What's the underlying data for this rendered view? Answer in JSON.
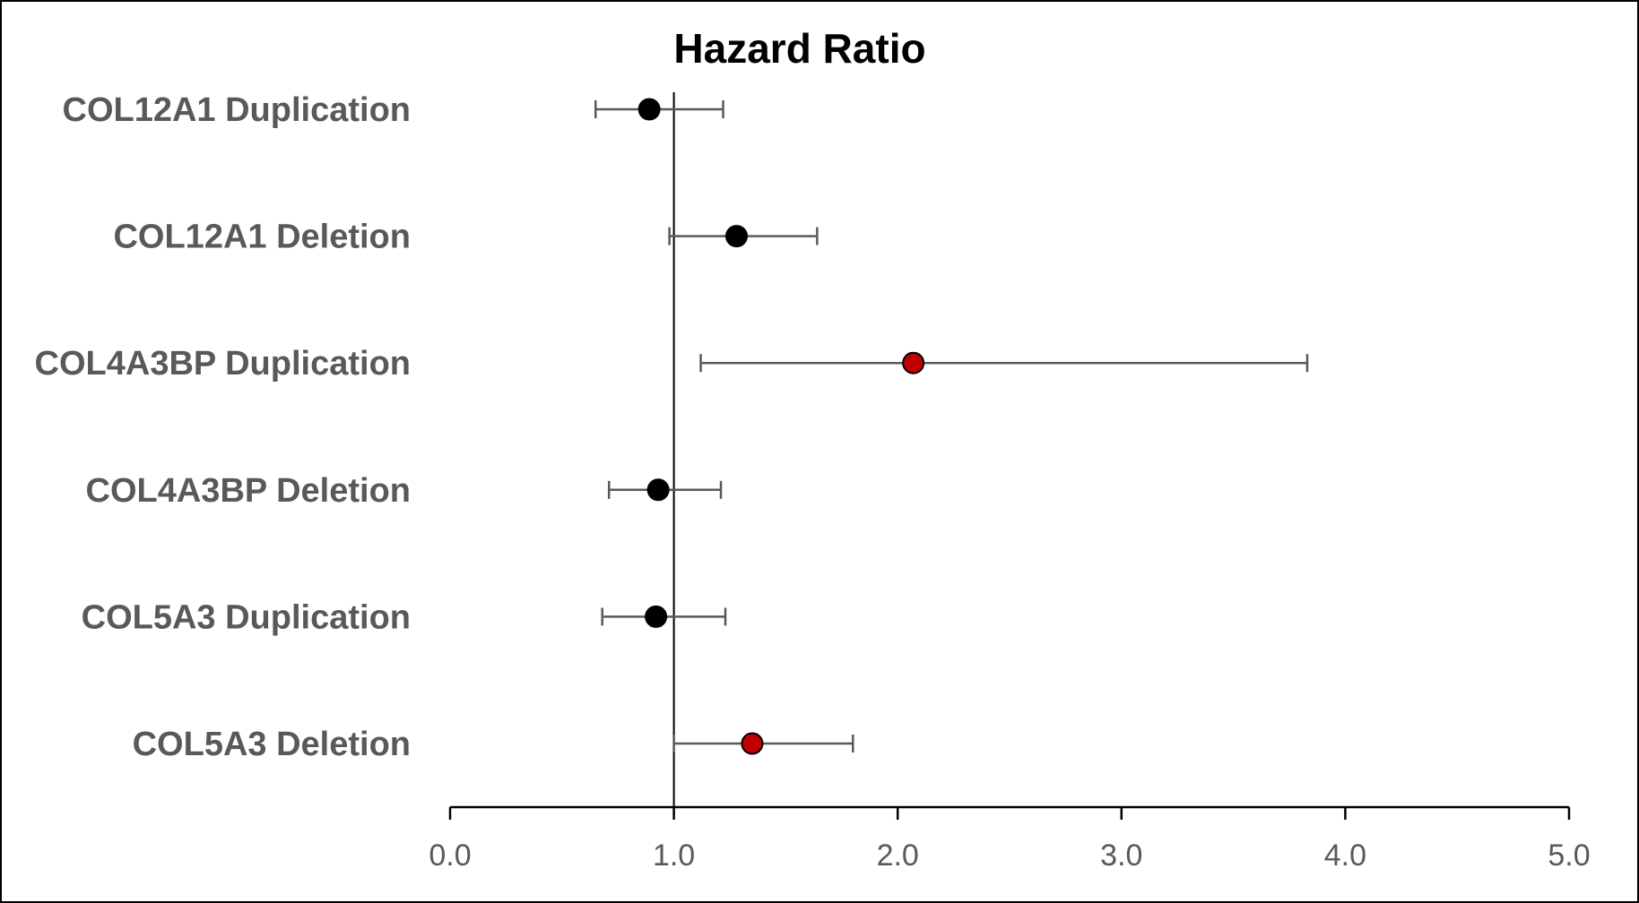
{
  "chart_data": {
    "type": "scatter",
    "title": "Hazard Ratio",
    "xlabel": "",
    "ylabel": "",
    "xlim": [
      0.0,
      5.0
    ],
    "x_ticks": [
      "0.0",
      "1.0",
      "2.0",
      "3.0",
      "4.0",
      "5.0"
    ],
    "x_tick_values": [
      0,
      1,
      2,
      3,
      4,
      5
    ],
    "reference_line": 1.0,
    "grid": false,
    "legend": "none",
    "colors": {
      "default_point": "#000000",
      "highlight_point": "#c00000",
      "error_bar": "#595959",
      "reference_line": "#000000"
    },
    "categories": [
      "COL12A1 Duplication",
      "COL12A1 Deletion",
      "COL4A3BP Duplication",
      "COL4A3BP Deletion",
      "COL5A3 Duplication",
      "COL5A3 Deletion"
    ],
    "points": [
      {
        "label": "COL12A1 Duplication",
        "hr": 0.89,
        "lower": 0.65,
        "upper": 1.22,
        "highlight": false
      },
      {
        "label": "COL12A1 Deletion",
        "hr": 1.28,
        "lower": 0.98,
        "upper": 1.64,
        "highlight": false
      },
      {
        "label": "COL4A3BP Duplication",
        "hr": 2.07,
        "lower": 1.12,
        "upper": 3.83,
        "highlight": true
      },
      {
        "label": "COL4A3BP Deletion",
        "hr": 0.93,
        "lower": 0.71,
        "upper": 1.21,
        "highlight": false
      },
      {
        "label": "COL5A3 Duplication",
        "hr": 0.92,
        "lower": 0.68,
        "upper": 1.23,
        "highlight": false
      },
      {
        "label": "COL5A3 Deletion",
        "hr": 1.35,
        "lower": 1.0,
        "upper": 1.8,
        "highlight": true
      }
    ]
  }
}
